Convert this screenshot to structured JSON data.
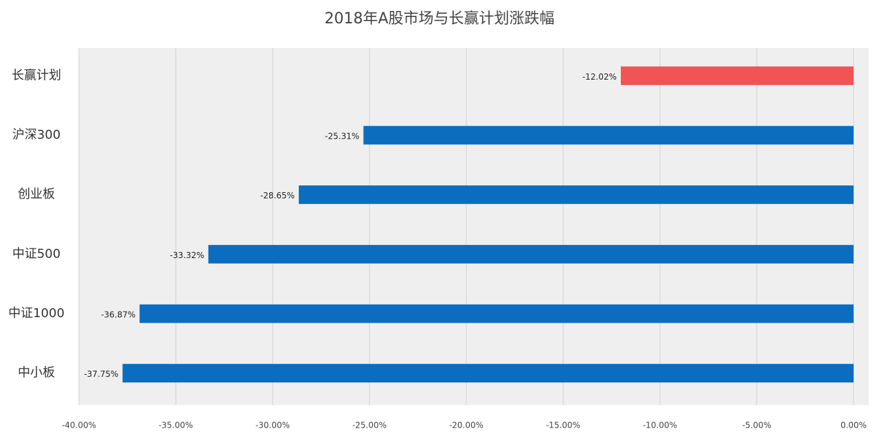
{
  "chart_data": {
    "type": "bar",
    "orientation": "horizontal",
    "title": "2018年A股市场与长赢计划涨跌幅",
    "categories": [
      "长赢计划",
      "沪深300",
      "创业板",
      "中证500",
      "中证1000",
      "中小板"
    ],
    "values": [
      -12.02,
      -25.31,
      -28.65,
      -33.32,
      -36.87,
      -37.75
    ],
    "value_labels": [
      "-12.02%",
      "-25.31%",
      "-28.65%",
      "-33.32%",
      "-36.87%",
      "-37.75%"
    ],
    "colors": [
      "#f05454",
      "#0b6dbf",
      "#0b6dbf",
      "#0b6dbf",
      "#0b6dbf",
      "#0b6dbf"
    ],
    "xlim": [
      -40,
      0
    ],
    "xticks": [
      {
        "value": -40,
        "label": "-40.00%"
      },
      {
        "value": -35,
        "label": "-35.00%"
      },
      {
        "value": -30,
        "label": "-30.00%"
      },
      {
        "value": -25,
        "label": "-25.00%"
      },
      {
        "value": -20,
        "label": "-20.00%"
      },
      {
        "value": -15,
        "label": "-15.00%"
      },
      {
        "value": -10,
        "label": "-10.00%"
      },
      {
        "value": -5,
        "label": "-5.00%"
      },
      {
        "value": 0,
        "label": "0.00%"
      }
    ],
    "grid": true
  }
}
